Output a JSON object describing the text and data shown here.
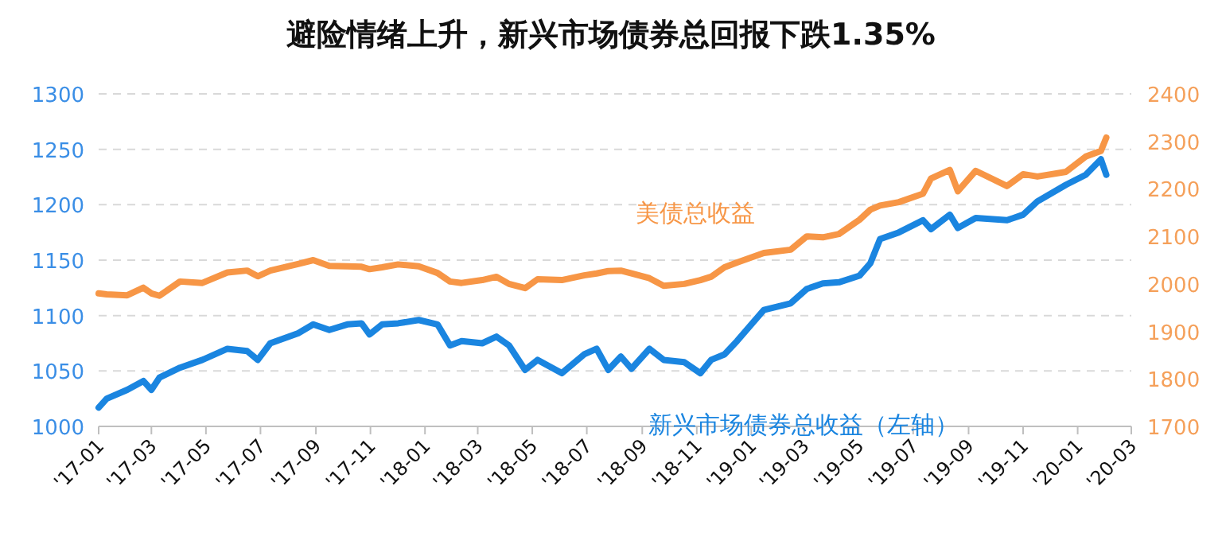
{
  "chart_data": {
    "type": "line",
    "title": "避险情绪上升，新兴市场债券总回报下跌1.35%",
    "x": [
      "2017-01-01",
      "2017-01-10",
      "2017-02-02",
      "2017-02-20",
      "2017-03-01",
      "2017-03-10",
      "2017-04-02",
      "2017-04-27",
      "2017-05-25",
      "2017-06-16",
      "2017-06-28",
      "2017-07-12",
      "2017-08-12",
      "2017-08-29",
      "2017-09-16",
      "2017-10-06",
      "2017-10-22",
      "2017-10-31",
      "2017-11-14",
      "2017-12-02",
      "2017-12-25",
      "2018-01-15",
      "2018-01-29",
      "2018-02-11",
      "2018-03-06",
      "2018-03-22",
      "2018-04-05",
      "2018-04-23",
      "2018-05-07",
      "2018-06-03",
      "2018-06-28",
      "2018-07-12",
      "2018-07-25",
      "2018-08-08",
      "2018-08-20",
      "2018-09-09",
      "2018-09-25",
      "2018-10-18",
      "2018-11-05",
      "2018-11-17",
      "2018-12-02",
      "2018-12-16",
      "2019-01-15",
      "2019-02-14",
      "2019-03-04",
      "2019-03-22",
      "2019-04-09",
      "2019-05-02",
      "2019-05-14",
      "2019-05-25",
      "2019-06-15",
      "2019-07-12",
      "2019-07-21",
      "2019-08-11",
      "2019-08-20",
      "2019-09-09",
      "2019-10-14",
      "2019-11-01",
      "2019-11-17",
      "2019-12-19",
      "2020-01-10",
      "2020-01-27",
      "2020-02-02"
    ],
    "series": [
      {
        "name": "新兴市场债券总收益（左轴）",
        "color": "#1a85e0",
        "values": [
          1017,
          1025,
          1033,
          1041,
          1033,
          1044,
          1053,
          1060,
          1070,
          1068,
          1060,
          1075,
          1084,
          1092,
          1087,
          1092,
          1093,
          1083,
          1092,
          1093,
          1096,
          1092,
          1073,
          1077,
          1075,
          1081,
          1073,
          1051,
          1060,
          1048,
          1065,
          1070,
          1051,
          1063,
          1052,
          1070,
          1060,
          1058,
          1048,
          1060,
          1065,
          1077,
          1105,
          1111,
          1124,
          1129,
          1130,
          1136,
          1147,
          1169,
          1175,
          1186,
          1178,
          1191,
          1179,
          1188,
          1186,
          1191,
          1203,
          1218,
          1227,
          1241,
          1227
        ]
      },
      {
        "name": "美债总收益",
        "color": "#f79646",
        "axis": "y2",
        "values": [
          1980,
          1978,
          1976,
          1992,
          1980,
          1975,
          2005,
          2002,
          2024,
          2028,
          2016,
          2028,
          2042,
          2050,
          2038,
          2037,
          2036,
          2031,
          2035,
          2041,
          2037,
          2023,
          2005,
          2002,
          2008,
          2015,
          2000,
          1991,
          2010,
          2008,
          2018,
          2022,
          2027,
          2028,
          2022,
          2012,
          1996,
          2000,
          2008,
          2015,
          2035,
          2045,
          2065,
          2072,
          2100,
          2098,
          2105,
          2135,
          2156,
          2165,
          2172,
          2190,
          2222,
          2240,
          2195,
          2238,
          2206,
          2231,
          2226,
          2236,
          2268,
          2280,
          2308
        ]
      }
    ],
    "xlim": [
      "2017-01-01",
      "2020-03-01"
    ],
    "xticks": [
      {
        "value": "2017-01",
        "label": "'17-01"
      },
      {
        "value": "2017-03",
        "label": "'17-03"
      },
      {
        "value": "2017-05",
        "label": "'17-05"
      },
      {
        "value": "2017-07",
        "label": "'17-07"
      },
      {
        "value": "2017-09",
        "label": "'17-09"
      },
      {
        "value": "2017-11",
        "label": "'17-11"
      },
      {
        "value": "2018-01",
        "label": "'18-01"
      },
      {
        "value": "2018-03",
        "label": "'18-03"
      },
      {
        "value": "2018-05",
        "label": "'18-05"
      },
      {
        "value": "2018-07",
        "label": "'18-07"
      },
      {
        "value": "2018-09",
        "label": "'18-09"
      },
      {
        "value": "2018-11",
        "label": "'18-11"
      },
      {
        "value": "2019-01",
        "label": "'19-01"
      },
      {
        "value": "2019-03",
        "label": "'19-03"
      },
      {
        "value": "2019-05",
        "label": "'19-05"
      },
      {
        "value": "2019-07",
        "label": "'19-07"
      },
      {
        "value": "2019-09",
        "label": "'19-09"
      },
      {
        "value": "2019-11",
        "label": "'19-11"
      },
      {
        "value": "2020-01",
        "label": "'20-01"
      },
      {
        "value": "2020-03",
        "label": "'20-03"
      }
    ],
    "ylim": [
      1000,
      1300
    ],
    "yticks": [
      1000,
      1050,
      1100,
      1150,
      1200,
      1250,
      1300
    ],
    "y2lim": [
      1700,
      2400
    ],
    "y2ticks": [
      1700,
      1800,
      1900,
      2000,
      2100,
      2200,
      2300,
      2400
    ],
    "grid": "y",
    "legend": false,
    "marker": "none",
    "line_style": "solid"
  }
}
